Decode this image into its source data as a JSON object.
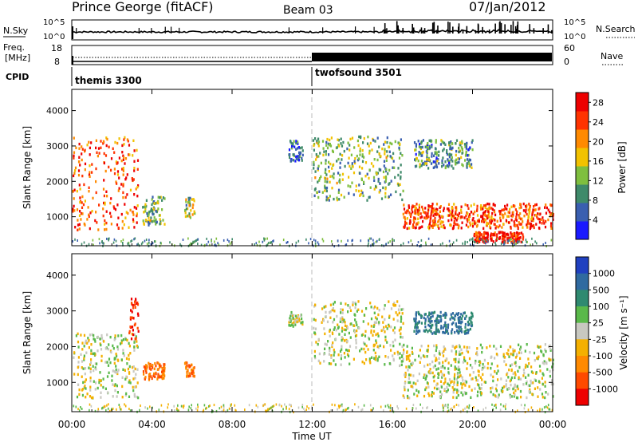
{
  "header": {
    "station": "Prince George (fitACF)",
    "beam": "Beam 03",
    "date": "07/Jan/2012"
  },
  "noise_panel": {
    "left_label": "N.Sky",
    "left_ticks": [
      "10^5",
      "10^0"
    ],
    "right_ticks": [
      "10^5",
      "10^0"
    ],
    "right_label": "N.Search"
  },
  "freq_panel": {
    "left_label_line1": "Freq.",
    "left_label_line2": "[MHz]",
    "left_ticks": [
      "18",
      "8"
    ],
    "right_ticks": [
      "60",
      "0"
    ],
    "right_label": "Nave"
  },
  "cpid_panel": {
    "label": "CPID",
    "modes": [
      {
        "name": "themis 3300",
        "start_hour": 0
      },
      {
        "name": "twofsound 3501",
        "start_hour": 12
      }
    ]
  },
  "x_axis": {
    "label": "Time UT",
    "ticks": [
      "00:00",
      "04:00",
      "08:00",
      "12:00",
      "16:00",
      "20:00",
      "00:00"
    ],
    "range_hours": [
      0,
      24
    ]
  },
  "chart_data": [
    {
      "type": "heatmap",
      "quantity": "power",
      "ylabel": "Slant Range [km]",
      "yticks": [
        "1000",
        "2000",
        "3000",
        "4000"
      ],
      "ylim": [
        180,
        4600
      ],
      "colorbar_label": "Power [dB]",
      "colorbar_ticks": [
        "4",
        "8",
        "12",
        "16",
        "20",
        "24",
        "28"
      ],
      "colorbar_range": [
        0,
        30
      ],
      "colorbar_colors": [
        "#1a1aff",
        "#3a5fb0",
        "#3f8a6a",
        "#7fbf3f",
        "#f2c200",
        "#ff8a00",
        "#ff3300",
        "#ee0000"
      ],
      "blobs": [
        {
          "t0": 0.0,
          "t1": 3.3,
          "r0": 650,
          "r1": 3300,
          "value": 24
        },
        {
          "t0": 3.5,
          "t1": 4.6,
          "r0": 800,
          "r1": 1600,
          "value": 12
        },
        {
          "t0": 5.6,
          "t1": 6.1,
          "r0": 1000,
          "r1": 1600,
          "value": 14
        },
        {
          "t0": 10.8,
          "t1": 11.5,
          "r0": 2600,
          "r1": 3200,
          "value": 6
        },
        {
          "t0": 12.0,
          "t1": 16.5,
          "r0": 1500,
          "r1": 3300,
          "value": 12
        },
        {
          "t0": 16.5,
          "t1": 24.0,
          "r0": 700,
          "r1": 1400,
          "value": 24
        },
        {
          "t0": 20.0,
          "t1": 22.5,
          "r0": 300,
          "r1": 600,
          "value": 28
        },
        {
          "t0": 17.0,
          "t1": 20.0,
          "r0": 2400,
          "r1": 3200,
          "value": 10
        }
      ]
    },
    {
      "type": "heatmap",
      "quantity": "velocity",
      "ylabel": "Slant Range [km]",
      "yticks": [
        "1000",
        "2000",
        "3000",
        "4000"
      ],
      "ylim": [
        180,
        4600
      ],
      "colorbar_label": "Velocity [m s⁻¹]",
      "colorbar_ticks": [
        "1000",
        "500",
        "100",
        "25",
        "-25",
        "-100",
        "-500",
        "-1000"
      ],
      "colorbar_colors": [
        "#2040c0",
        "#2f6aa0",
        "#2f8a70",
        "#5ab94a",
        "#c8c8c0",
        "#f4b000",
        "#ff8a00",
        "#ff4a00",
        "#ee0000"
      ],
      "blobs": [
        {
          "t0": 0.0,
          "t1": 3.3,
          "r0": 600,
          "r1": 2400,
          "value": 0
        },
        {
          "t0": 2.8,
          "t1": 3.3,
          "r0": 2200,
          "r1": 3400,
          "value": -1000
        },
        {
          "t0": 3.5,
          "t1": 4.6,
          "r0": 1100,
          "r1": 1600,
          "value": -500
        },
        {
          "t0": 5.6,
          "t1": 6.1,
          "r0": 1200,
          "r1": 1600,
          "value": -500
        },
        {
          "t0": 10.8,
          "t1": 11.5,
          "r0": 2600,
          "r1": 3000,
          "value": 0
        },
        {
          "t0": 12.0,
          "t1": 16.5,
          "r0": 1500,
          "r1": 3300,
          "value": 0
        },
        {
          "t0": 16.5,
          "t1": 24.0,
          "r0": 600,
          "r1": 2100,
          "value": 0
        },
        {
          "t0": 17.0,
          "t1": 20.0,
          "r0": 2400,
          "r1": 3000,
          "value": 500
        }
      ]
    }
  ]
}
